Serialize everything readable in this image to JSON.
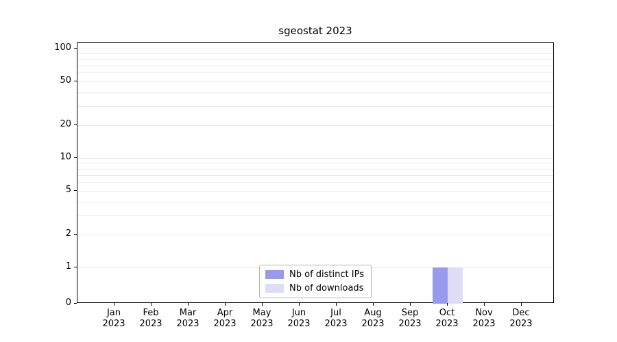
{
  "chart_data": {
    "type": "bar",
    "title": "sgeostat 2023",
    "categories": [
      "Jan 2023",
      "Feb 2023",
      "Mar 2023",
      "Apr 2023",
      "May 2023",
      "Jun 2023",
      "Jul 2023",
      "Aug 2023",
      "Sep 2023",
      "Oct 2023",
      "Nov 2023",
      "Dec 2023"
    ],
    "series": [
      {
        "name": "Nb of distinct IPs",
        "color": "#9999ee",
        "values": [
          0,
          0,
          0,
          0,
          0,
          0,
          0,
          0,
          0,
          1,
          0,
          0
        ]
      },
      {
        "name": "Nb of downloads",
        "color": "#ddddf8",
        "values": [
          0,
          0,
          0,
          0,
          0,
          0,
          0,
          0,
          0,
          1,
          0,
          0
        ]
      }
    ],
    "xlabel": "",
    "ylabel": "",
    "yscale": "log",
    "ylim": [
      0,
      110
    ],
    "yticks": [
      0,
      1,
      2,
      5,
      10,
      20,
      50,
      100
    ],
    "gridline_values": [
      1,
      2,
      3,
      4,
      5,
      6,
      7,
      8,
      9,
      10,
      20,
      30,
      40,
      50,
      60,
      70,
      80,
      90,
      100
    ],
    "grid": true,
    "legend_position": "bottom-center"
  }
}
